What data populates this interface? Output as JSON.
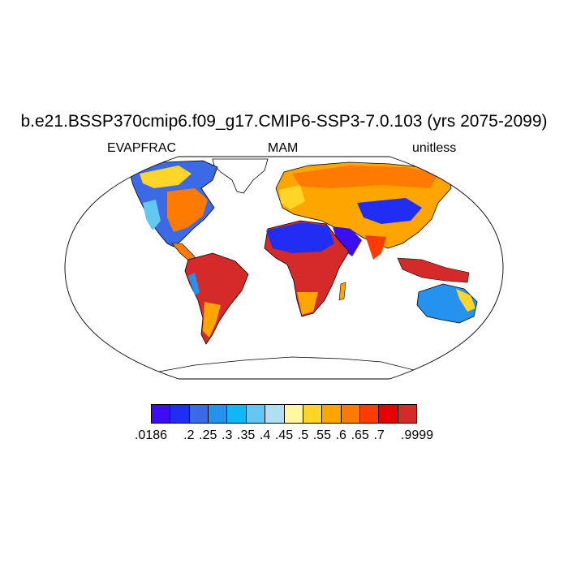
{
  "title": "b.e21.BSSP370cmip6.f09_g17.CMIP6-SSP3-7.0.103 (yrs 2075-2099)",
  "subtitles": {
    "left": "EVAPFRAC",
    "center": "MAM",
    "right": "unitless"
  },
  "map": {
    "projection": "robinson",
    "variable": "EVAPFRAC",
    "season": "MAM",
    "units": "unitless"
  },
  "colorbar": {
    "colors": [
      "#3a0ef0",
      "#1f2ef2",
      "#3c6ae6",
      "#2592f0",
      "#0fb8f5",
      "#63c7f2",
      "#b0dff2",
      "#fff7a0",
      "#ffd52a",
      "#ffa500",
      "#ff7a00",
      "#ff3b00",
      "#e60000",
      "#d42a2a"
    ],
    "tick_labels": [
      ".0186",
      ".2",
      ".25",
      ".3",
      ".35",
      ".4",
      ".45",
      ".5",
      ".55",
      ".6",
      ".65",
      ".7",
      ".9999"
    ]
  }
}
